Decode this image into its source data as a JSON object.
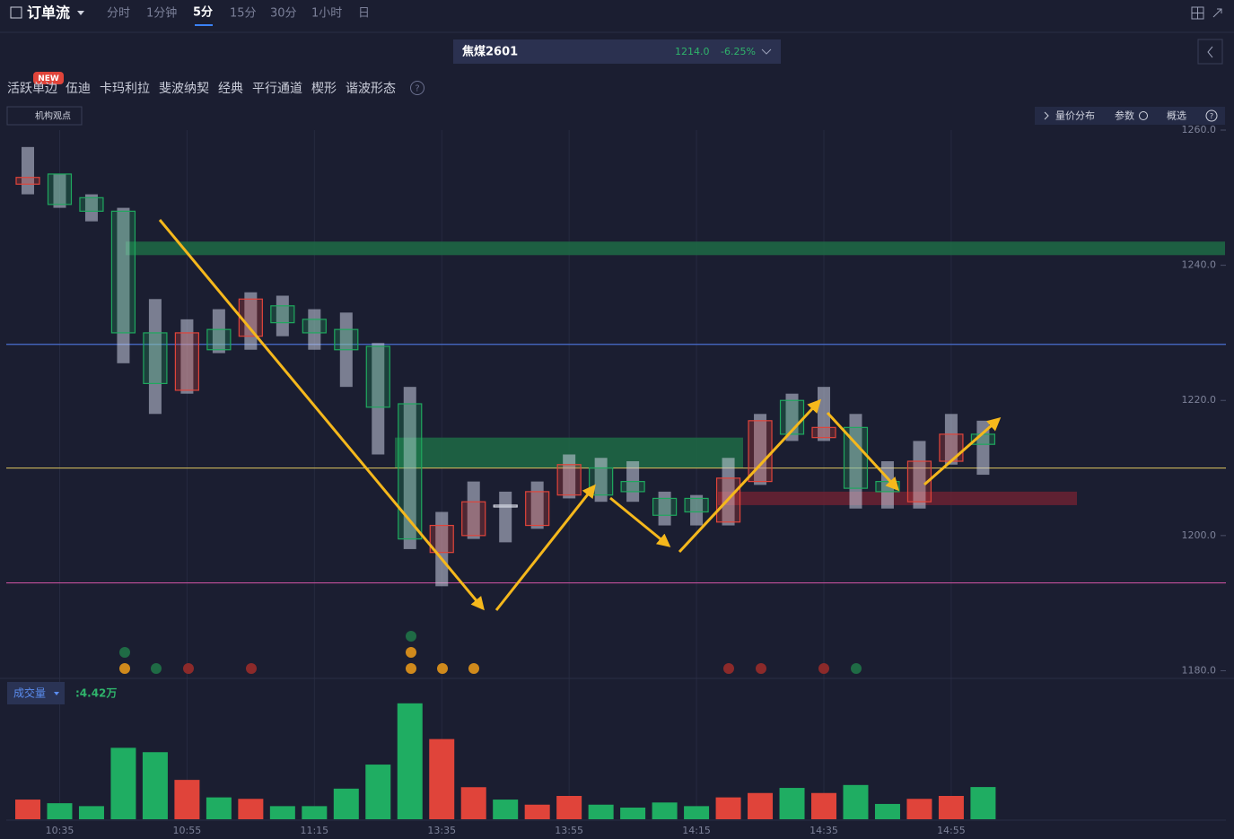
{
  "header": {
    "title": "订单流",
    "tabs": [
      "分时",
      "1分钟",
      "5分",
      "15分",
      "30分",
      "1小时",
      "日"
    ],
    "symbol": "焦煤2601",
    "price": "1214.0",
    "change": "-6.25%"
  },
  "toolbar": {
    "badge": "NEW",
    "tools": [
      "活跃单边",
      "伍迪",
      "卡玛利拉",
      "斐波纳契",
      "经典",
      "平行通道",
      "楔形",
      "谐波形态"
    ],
    "help": "?",
    "institution": "机构观点",
    "panel_buttons": [
      "量价分布",
      "参数",
      "概选"
    ]
  },
  "chart_data": [
    {
      "type": "candlestick",
      "categories": [
        null,
        "10:35",
        null,
        null,
        null,
        "10:55",
        null,
        null,
        null,
        "11:15",
        null,
        null,
        null,
        "13:35",
        null,
        null,
        null,
        "13:55",
        null,
        null,
        null,
        "14:15",
        null,
        null,
        null,
        "14:35",
        null,
        null,
        null,
        "14:55",
        null
      ],
      "open": [
        1252,
        1253.5,
        1250,
        1248,
        1230,
        1221.5,
        1230.5,
        1229.5,
        1234,
        1232,
        1230.5,
        1228,
        1219.5,
        1197.5,
        1200,
        1204.5,
        1201.5,
        1206,
        1210,
        1208,
        1205.5,
        1205.5,
        1202,
        1208,
        1220,
        1214.5,
        1216,
        1208,
        1205,
        1211,
        1215
      ],
      "close": [
        1253,
        1249,
        1248,
        1230,
        1222.5,
        1230,
        1227.5,
        1235,
        1231.5,
        1230,
        1227.5,
        1219,
        1199.5,
        1201.5,
        1205,
        1204.5,
        1206.5,
        1210.5,
        1206,
        1206.5,
        1203,
        1203.5,
        1208.5,
        1217,
        1215,
        1216,
        1207,
        1206.5,
        1211,
        1215,
        1213.5
      ],
      "high": [
        1257.5,
        1253.5,
        1250.5,
        1248.5,
        1235,
        1232,
        1233.5,
        1236,
        1235.5,
        1233.5,
        1233,
        1228.5,
        1222,
        1203.5,
        1208,
        1206.5,
        1208,
        1212,
        1211.5,
        1211,
        1206.5,
        1206,
        1211.5,
        1218,
        1221,
        1222,
        1218,
        1211,
        1214,
        1218,
        1217
      ],
      "low": [
        1250.5,
        1248.5,
        1246.5,
        1225.5,
        1218,
        1221,
        1227,
        1227.5,
        1229.5,
        1227.5,
        1222,
        1212,
        1198,
        1192.5,
        1199.5,
        1199,
        1201,
        1205.5,
        1205,
        1205,
        1201.5,
        1201.5,
        1201.5,
        1207.5,
        1214,
        1214,
        1204,
        1204,
        1204,
        1210.5,
        1209
      ],
      "up_color": "#e0443a",
      "down_color": "#1fa85e",
      "flat_color": "#d8dbe6",
      "ylim": [
        1179,
        1260
      ],
      "yticks": [
        {
          "value": 1260,
          "label": "1260.0"
        },
        {
          "value": 1240,
          "label": "1240.0"
        },
        {
          "value": 1220,
          "label": "1220.0"
        },
        {
          "value": 1200,
          "label": "1200.0"
        },
        {
          "value": 1180,
          "label": "1180.0"
        }
      ],
      "levels": [
        {
          "value": 1228.3,
          "color": "#4a6fd0"
        },
        {
          "value": 1210,
          "color": "#c9b45a"
        },
        {
          "value": 1193,
          "color": "#c04f9a"
        }
      ],
      "zones": [
        {
          "low": 1241.5,
          "high": 1243.5,
          "color": "#1d6b45"
        },
        {
          "low": 1210,
          "high": 1214.5,
          "color": "#1d6b45"
        },
        {
          "low": 1204.5,
          "high": 1206.5,
          "color": "#6b2233"
        }
      ]
    },
    {
      "type": "bar",
      "title": "成交量",
      "readout": ":4.42万",
      "values": [
        2.7,
        2.2,
        1.8,
        9.8,
        9.2,
        5.4,
        3.0,
        2.8,
        1.8,
        1.8,
        4.2,
        7.5,
        15.9,
        11.0,
        4.4,
        2.7,
        2.0,
        3.2,
        2.0,
        1.6,
        2.3,
        1.8,
        3.0,
        3.6,
        4.3,
        3.6,
        4.7,
        2.1,
        2.8,
        3.2,
        4.42
      ],
      "colors": [
        "#e0443a",
        "#1fad62",
        "#1fad62",
        "#1fad62",
        "#1fad62",
        "#e0443a",
        "#1fad62",
        "#e0443a",
        "#1fad62",
        "#1fad62",
        "#1fad62",
        "#1fad62",
        "#1fad62",
        "#e0443a",
        "#e0443a",
        "#1fad62",
        "#e0443a",
        "#e0443a",
        "#1fad62",
        "#1fad62",
        "#1fad62",
        "#1fad62",
        "#e0443a",
        "#e0443a",
        "#1fad62",
        "#e0443a",
        "#1fad62",
        "#1fad62",
        "#e0443a",
        "#e0443a",
        "#1fad62"
      ],
      "ylim": [
        0,
        16
      ]
    }
  ]
}
